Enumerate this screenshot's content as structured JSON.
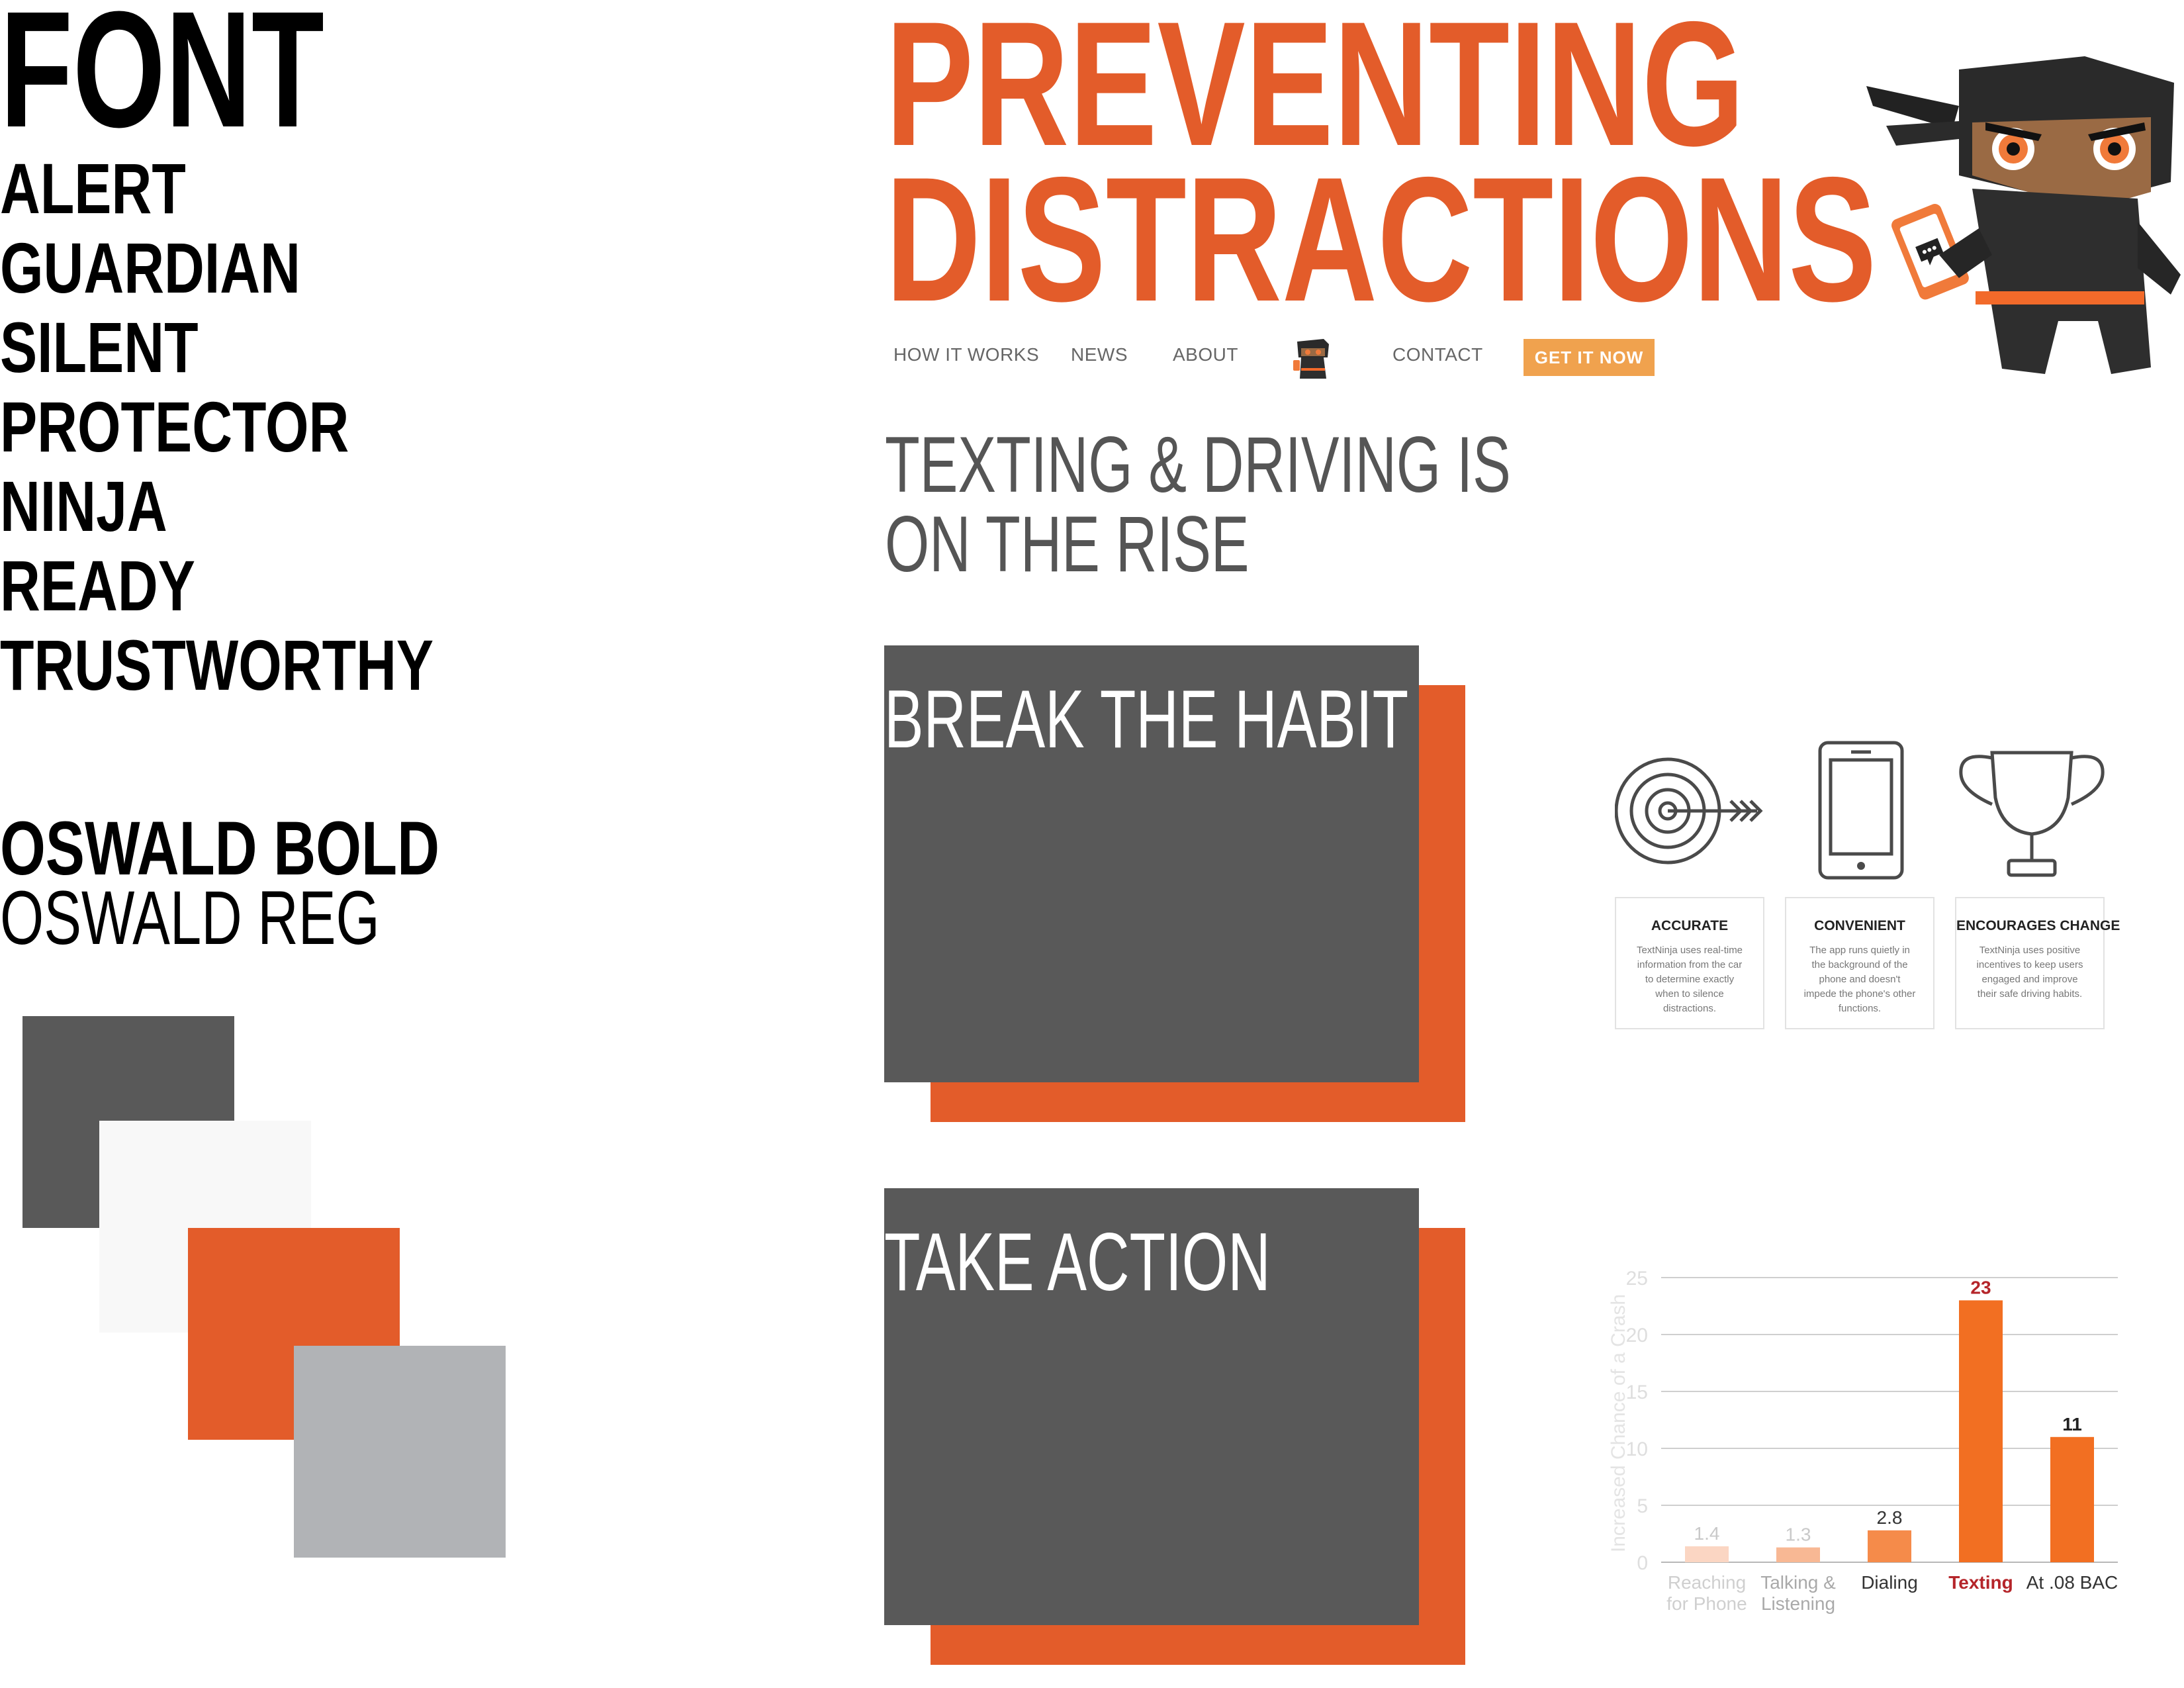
{
  "style_guide": {
    "font_title": "FONT",
    "words": [
      "ALERT",
      "GUARDIAN",
      "SILENT",
      "PROTECTOR",
      "NINJA",
      "READY",
      "TRUSTWORTHY"
    ],
    "font_bold": "OSWALD BOLD",
    "font_regular": "OSWALD REG",
    "palette": [
      "#595959",
      "#f8f8f8",
      "#e35c2a",
      "#b1b3b6"
    ]
  },
  "hero": {
    "line1": "PREVENTING",
    "line2": "DISTRACTIONS",
    "color": "#e35c2a"
  },
  "nav": {
    "items": [
      "HOW IT WORKS",
      "NEWS",
      "ABOUT",
      "CONTACT"
    ],
    "cta": "GET IT NOW"
  },
  "headline": {
    "line1": "TEXTING & DRIVING IS",
    "line2": "ON THE RISE"
  },
  "cards": [
    {
      "title": "BREAK THE HABIT"
    },
    {
      "title": "TAKE ACTION"
    }
  ],
  "features": [
    {
      "icon": "target-icon",
      "title": "ACCURATE",
      "text": "TextNinja uses real-time information from the car to determine exactly when to silence distractions."
    },
    {
      "icon": "phone-icon",
      "title": "CONVENIENT",
      "text": "The app runs quietly in the background of the phone and doesn't impede the phone's other functions."
    },
    {
      "icon": "trophy-icon",
      "title": "ENCOURAGES CHANGE",
      "text": "TextNinja uses positive incentives to keep users engaged and improve their safe driving habits."
    }
  ],
  "chart_data": {
    "type": "bar",
    "ylabel": "Increased Chance of a Crash",
    "ylim": [
      0,
      25
    ],
    "yticks": [
      0,
      5,
      10,
      15,
      20,
      25
    ],
    "grid": true,
    "categories": [
      {
        "lines": [
          "Reaching",
          "for Phone"
        ],
        "value": 1.4,
        "label": "1.4",
        "color": "#fbd6c3"
      },
      {
        "lines": [
          "Talking &",
          "Listening"
        ],
        "value": 1.3,
        "label": "1.3",
        "color": "#f8b894"
      },
      {
        "lines": [
          "Dialing"
        ],
        "value": 2.8,
        "label": "2.8",
        "color": "#f58b4a"
      },
      {
        "lines": [
          "Texting"
        ],
        "value": 23,
        "label": "23",
        "color": "#f26f22",
        "highlight": "#b5252a"
      },
      {
        "lines": [
          "At .08 BAC"
        ],
        "value": 11,
        "label": "11",
        "color": "#f26f22"
      }
    ]
  }
}
